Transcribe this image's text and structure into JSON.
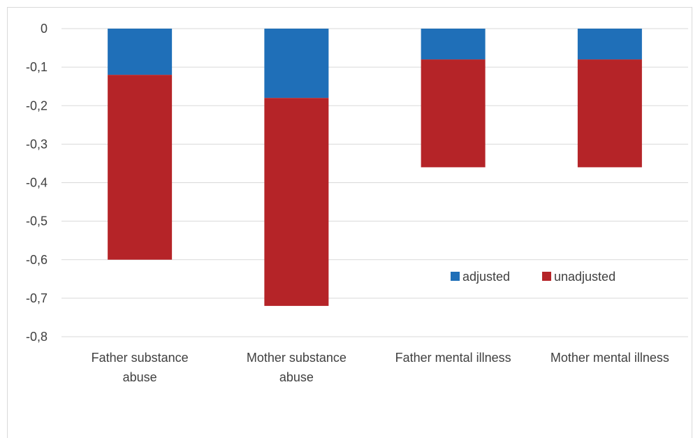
{
  "chart_data": {
    "type": "bar",
    "stacked": true,
    "categories": [
      [
        "Father substance",
        "abuse"
      ],
      [
        "Mother substance",
        "abuse"
      ],
      [
        "Father mental illness"
      ],
      [
        "Mother mental illness"
      ]
    ],
    "series": [
      {
        "name": "adjusted",
        "color": "#1f6fb8",
        "values": [
          -0.12,
          -0.18,
          -0.08,
          -0.08
        ]
      },
      {
        "name": "unadjusted",
        "color": "#b52428",
        "values": [
          -0.48,
          -0.54,
          -0.28,
          -0.28
        ]
      }
    ],
    "yticks": [
      "0",
      "-0,1",
      "-0,2",
      "-0,3",
      "-0,4",
      "-0,5",
      "-0,6",
      "-0,7",
      "-0,8"
    ],
    "ylim": [
      -0.8,
      0
    ],
    "grid": true,
    "legend_position": "inside-right"
  }
}
